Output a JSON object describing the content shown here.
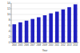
{
  "chart_data": {
    "type": "bar",
    "x_label": "Year",
    "categories": [
      "2004",
      "2005",
      "2006",
      "2007",
      "2008",
      "2009",
      "2010",
      "2011",
      "2012",
      "2013",
      "2014"
    ],
    "values": [
      6.5,
      7.2,
      7.8,
      8.4,
      9.0,
      9.7,
      10.4,
      11.0,
      11.8,
      12.6,
      13.6
    ],
    "color": "#1f1fbf",
    "ylim": [
      0,
      14
    ],
    "yticks": [
      0,
      2,
      4,
      6,
      8,
      10,
      12,
      14
    ],
    "grid": true
  }
}
